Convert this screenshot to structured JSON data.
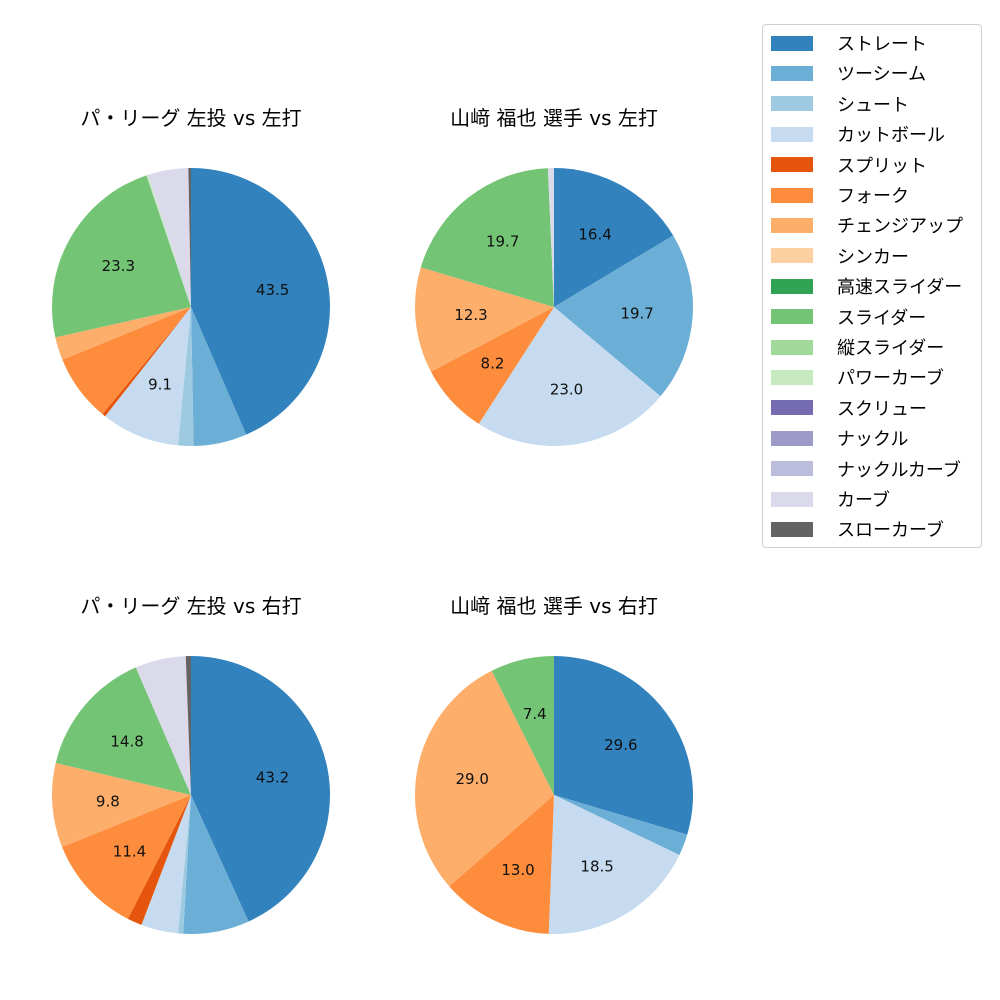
{
  "legend": {
    "items": [
      {
        "label": "ストレート",
        "color": "#3182bd"
      },
      {
        "label": "ツーシーム",
        "color": "#6baed6"
      },
      {
        "label": "シュート",
        "color": "#9ecae1"
      },
      {
        "label": "カットボール",
        "color": "#c6dbef"
      },
      {
        "label": "スプリット",
        "color": "#e6550d"
      },
      {
        "label": "フォーク",
        "color": "#fd8d3c"
      },
      {
        "label": "チェンジアップ",
        "color": "#fdae6b"
      },
      {
        "label": "シンカー",
        "color": "#fdd0a2"
      },
      {
        "label": "高速スライダー",
        "color": "#31a354"
      },
      {
        "label": "スライダー",
        "color": "#74c476"
      },
      {
        "label": "縦スライダー",
        "color": "#a1d99b"
      },
      {
        "label": "パワーカーブ",
        "color": "#c7e9c0"
      },
      {
        "label": "スクリュー",
        "color": "#756bb1"
      },
      {
        "label": "ナックル",
        "color": "#9e9ac8"
      },
      {
        "label": "ナックルカーブ",
        "color": "#bcbddc"
      },
      {
        "label": "カーブ",
        "color": "#dadaeb"
      },
      {
        "label": "スローカーブ",
        "color": "#636363"
      }
    ]
  },
  "chart_data": [
    {
      "type": "pie",
      "title": "パ・リーグ 左投 vs 左打",
      "start_angle": 90,
      "direction": "clockwise",
      "slices": [
        {
          "name": "ストレート",
          "value": 43.5,
          "label": "43.5"
        },
        {
          "name": "ツーシーム",
          "value": 6.2,
          "label": ""
        },
        {
          "name": "シュート",
          "value": 1.8,
          "label": ""
        },
        {
          "name": "カットボール",
          "value": 9.1,
          "label": "9.1"
        },
        {
          "name": "スプリット",
          "value": 0.4,
          "label": ""
        },
        {
          "name": "フォーク",
          "value": 7.8,
          "label": ""
        },
        {
          "name": "チェンジアップ",
          "value": 2.7,
          "label": ""
        },
        {
          "name": "スライダー",
          "value": 23.3,
          "label": "23.3"
        },
        {
          "name": "パワーカーブ",
          "value": 0.2,
          "label": ""
        },
        {
          "name": "カーブ",
          "value": 4.7,
          "label": ""
        },
        {
          "name": "スローカーブ",
          "value": 0.3,
          "label": ""
        }
      ]
    },
    {
      "type": "pie",
      "title": "山﨑 福也 選手 vs 左打",
      "start_angle": 90,
      "direction": "clockwise",
      "slices": [
        {
          "name": "ストレート",
          "value": 16.4,
          "label": "16.4"
        },
        {
          "name": "ツーシーム",
          "value": 19.7,
          "label": "19.7"
        },
        {
          "name": "カットボール",
          "value": 23.0,
          "label": "23.0"
        },
        {
          "name": "フォーク",
          "value": 8.2,
          "label": "8.2"
        },
        {
          "name": "チェンジアップ",
          "value": 12.3,
          "label": "12.3"
        },
        {
          "name": "スライダー",
          "value": 19.7,
          "label": "19.7"
        },
        {
          "name": "カーブ",
          "value": 0.7,
          "label": ""
        }
      ]
    },
    {
      "type": "pie",
      "title": "パ・リーグ 左投 vs 右打",
      "start_angle": 90,
      "direction": "clockwise",
      "slices": [
        {
          "name": "ストレート",
          "value": 43.2,
          "label": "43.2"
        },
        {
          "name": "ツーシーム",
          "value": 7.7,
          "label": ""
        },
        {
          "name": "シュート",
          "value": 0.6,
          "label": ""
        },
        {
          "name": "カットボール",
          "value": 4.3,
          "label": ""
        },
        {
          "name": "スプリット",
          "value": 1.7,
          "label": ""
        },
        {
          "name": "フォーク",
          "value": 11.4,
          "label": "11.4"
        },
        {
          "name": "チェンジアップ",
          "value": 9.8,
          "label": "9.8"
        },
        {
          "name": "スライダー",
          "value": 14.8,
          "label": "14.8"
        },
        {
          "name": "カーブ",
          "value": 5.9,
          "label": ""
        },
        {
          "name": "スローカーブ",
          "value": 0.6,
          "label": ""
        }
      ]
    },
    {
      "type": "pie",
      "title": "山﨑 福也 選手 vs 右打",
      "start_angle": 90,
      "direction": "clockwise",
      "slices": [
        {
          "name": "ストレート",
          "value": 29.6,
          "label": "29.6"
        },
        {
          "name": "ツーシーム",
          "value": 2.5,
          "label": ""
        },
        {
          "name": "カットボール",
          "value": 18.5,
          "label": "18.5"
        },
        {
          "name": "フォーク",
          "value": 13.0,
          "label": "13.0"
        },
        {
          "name": "チェンジアップ",
          "value": 29.0,
          "label": "29.0"
        },
        {
          "name": "スライダー",
          "value": 7.4,
          "label": "7.4"
        }
      ]
    }
  ]
}
